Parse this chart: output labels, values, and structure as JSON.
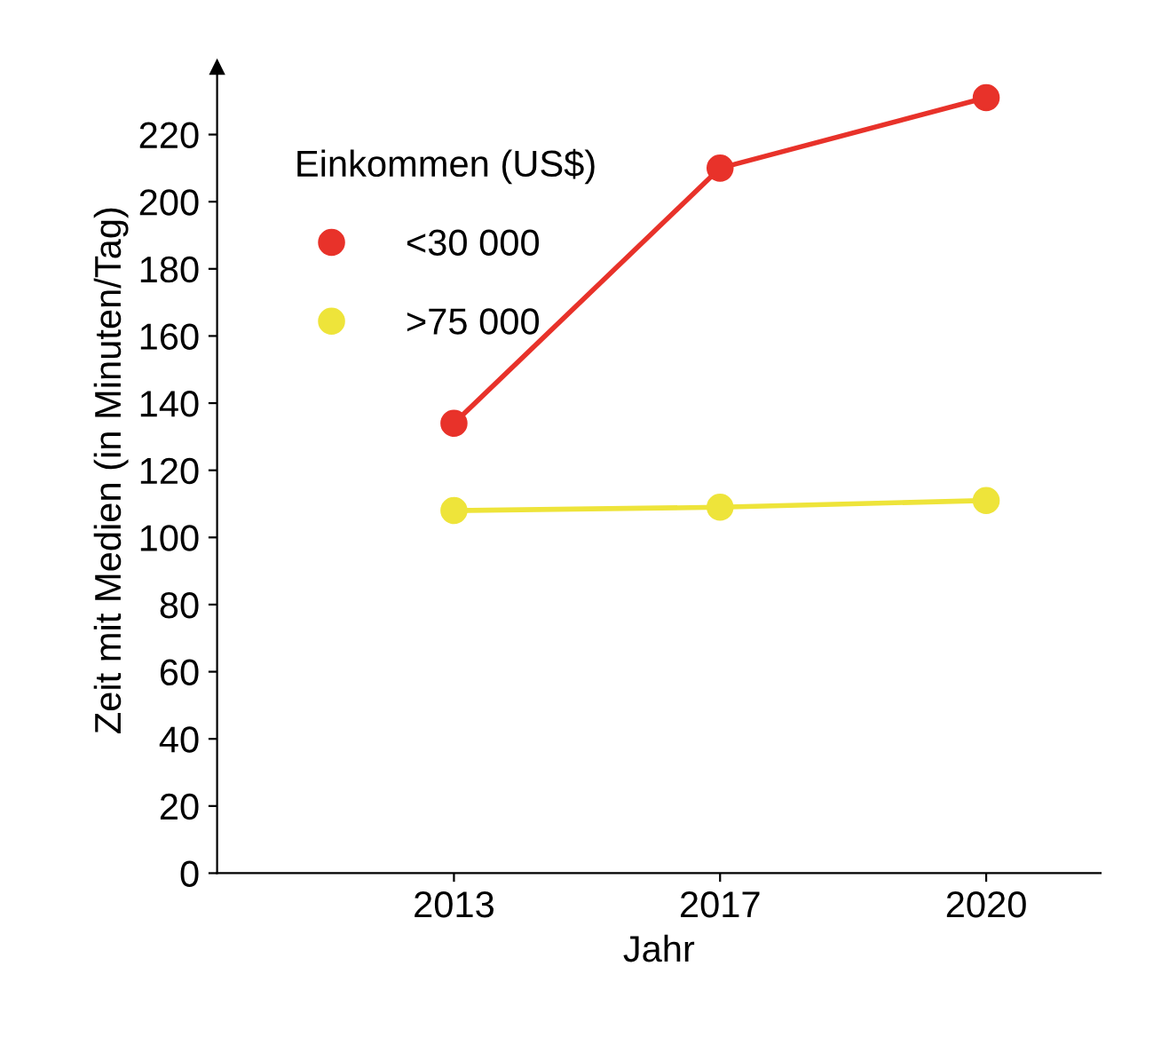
{
  "chart_data": {
    "type": "line",
    "xlabel": "Jahr",
    "ylabel": "Zeit mit Medien (in Minuten/Tag)",
    "legend_title": "Einkommen (US$)",
    "categories": [
      "2013",
      "2017",
      "2020"
    ],
    "series": [
      {
        "name": "<30 000",
        "color": "#e8322a",
        "values": [
          134,
          210,
          231
        ]
      },
      {
        "name": ">75 000",
        "color": "#eee43a",
        "values": [
          108,
          109,
          111
        ]
      }
    ],
    "ylim": [
      0,
      240
    ],
    "yticks": [
      0,
      20,
      40,
      60,
      80,
      100,
      120,
      140,
      160,
      180,
      200,
      220
    ],
    "grid": false,
    "legend": "top left",
    "marker": "circle",
    "line_style": "solid"
  }
}
